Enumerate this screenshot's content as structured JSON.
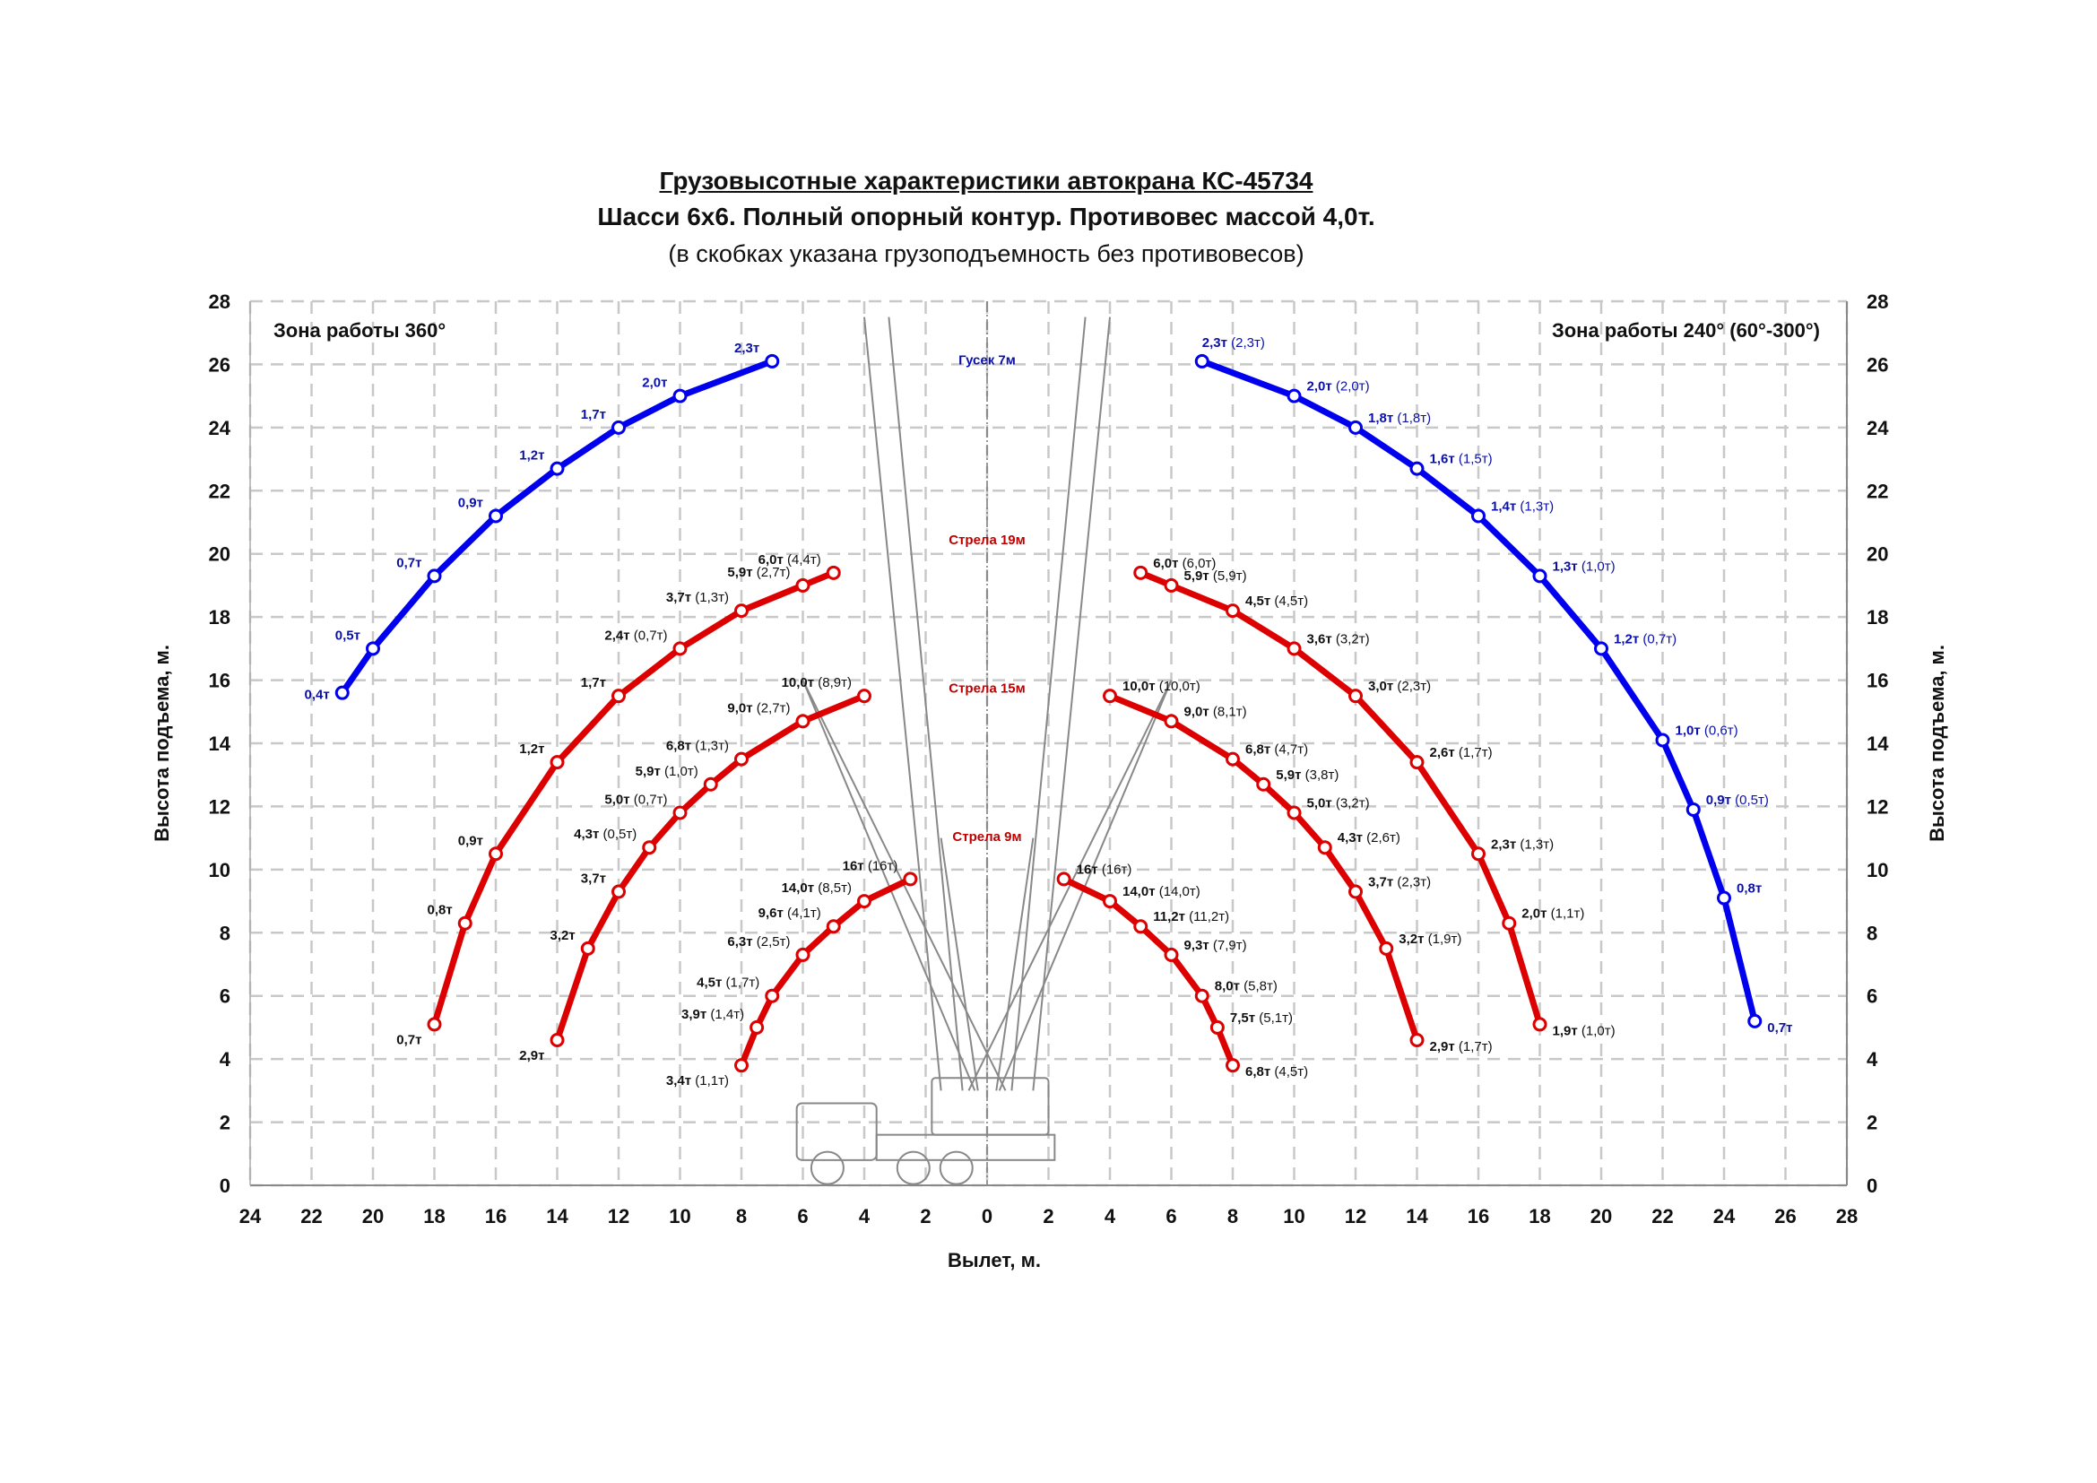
{
  "chart_data": {
    "type": "line",
    "title": "Грузовысотные характеристики автокрана КС-45734",
    "subtitle": "Шасси 6х6. Полный опорный контур. Противовес массой 4,0т.",
    "note": "(в скобках указана грузоподъемность без противовесов)",
    "xlabel": "Вылет, м.",
    "ylabel": "Высота подъема, м.",
    "xlim": [
      -24,
      28
    ],
    "ylim": [
      0,
      28
    ],
    "grid": true,
    "x_ticks": [
      {
        "value": -24,
        "label": "24"
      },
      {
        "value": -22,
        "label": "22"
      },
      {
        "value": -20,
        "label": "20"
      },
      {
        "value": -18,
        "label": "18"
      },
      {
        "value": -16,
        "label": "16"
      },
      {
        "value": -14,
        "label": "14"
      },
      {
        "value": -12,
        "label": "12"
      },
      {
        "value": -10,
        "label": "10"
      },
      {
        "value": -8,
        "label": "8"
      },
      {
        "value": -6,
        "label": "6"
      },
      {
        "value": -4,
        "label": "4"
      },
      {
        "value": -2,
        "label": "2"
      },
      {
        "value": 0,
        "label": "0"
      },
      {
        "value": 2,
        "label": "2"
      },
      {
        "value": 4,
        "label": "4"
      },
      {
        "value": 6,
        "label": "6"
      },
      {
        "value": 8,
        "label": "8"
      },
      {
        "value": 10,
        "label": "10"
      },
      {
        "value": 12,
        "label": "12"
      },
      {
        "value": 14,
        "label": "14"
      },
      {
        "value": 16,
        "label": "16"
      },
      {
        "value": 18,
        "label": "18"
      },
      {
        "value": 20,
        "label": "20"
      },
      {
        "value": 22,
        "label": "22"
      },
      {
        "value": 24,
        "label": "24"
      },
      {
        "value": 26,
        "label": "26"
      },
      {
        "value": 28,
        "label": "28"
      }
    ],
    "y_ticks": [
      "0",
      "2",
      "4",
      "6",
      "8",
      "10",
      "12",
      "14",
      "16",
      "18",
      "20",
      "22",
      "24",
      "26",
      "28"
    ],
    "zones": {
      "left": "Зона работы 360°",
      "right": "Зона работы 240° (60°-300°)"
    },
    "annotations": [
      {
        "text": "Гусек 7м",
        "x": 0,
        "y": 26,
        "color": "#0a10a8"
      },
      {
        "text": "Стрела 19м",
        "x": 0,
        "y": 20.3,
        "color": "#c00000"
      },
      {
        "text": "Стрела 15м",
        "x": 0,
        "y": 15.6,
        "color": "#c00000"
      },
      {
        "text": "Стрела 9м",
        "x": 0,
        "y": 10.9,
        "color": "#c00000"
      }
    ],
    "colors": {
      "jib": "#0000ee",
      "boom": "#dd0000",
      "jib_text": "#0a10a8",
      "grid": "#c8c8c8"
    },
    "series": [
      {
        "name": "Гусек 7м — 360°",
        "kind": "jib",
        "side": "left",
        "points": [
          {
            "x": -21,
            "y": 15.6,
            "main": "0,4т",
            "alt": ""
          },
          {
            "x": -20,
            "y": 17.0,
            "main": "0,5т",
            "alt": ""
          },
          {
            "x": -18,
            "y": 19.3,
            "main": "0,7т",
            "alt": ""
          },
          {
            "x": -16,
            "y": 21.2,
            "main": "0,9т",
            "alt": ""
          },
          {
            "x": -14,
            "y": 22.7,
            "main": "1,2т",
            "alt": ""
          },
          {
            "x": -12,
            "y": 24.0,
            "main": "1,7т",
            "alt": ""
          },
          {
            "x": -10,
            "y": 25.0,
            "main": "2,0т",
            "alt": ""
          },
          {
            "x": -7,
            "y": 26.1,
            "main": "2,3т",
            "alt": ""
          }
        ]
      },
      {
        "name": "Стрела 19м — 360°",
        "kind": "boom",
        "side": "left",
        "points": [
          {
            "x": -18,
            "y": 5.1,
            "main": "0,7т",
            "alt": ""
          },
          {
            "x": -17,
            "y": 8.3,
            "main": "0,8т",
            "alt": ""
          },
          {
            "x": -16,
            "y": 10.5,
            "main": "0,9т",
            "alt": ""
          },
          {
            "x": -14,
            "y": 13.4,
            "main": "1,2т",
            "alt": ""
          },
          {
            "x": -12,
            "y": 15.5,
            "main": "1,7т",
            "alt": ""
          },
          {
            "x": -10,
            "y": 17.0,
            "main": "2,4т",
            "alt": "(0,7т)"
          },
          {
            "x": -8,
            "y": 18.2,
            "main": "3,7т",
            "alt": "(1,3т)"
          },
          {
            "x": -6,
            "y": 19.0,
            "main": "5,9т",
            "alt": "(2,7т)"
          },
          {
            "x": -5,
            "y": 19.4,
            "main": "6,0т",
            "alt": "(4,4т)"
          }
        ]
      },
      {
        "name": "Стрела 15м — 360°",
        "kind": "boom",
        "side": "left",
        "points": [
          {
            "x": -14,
            "y": 4.6,
            "main": "2,9т",
            "alt": ""
          },
          {
            "x": -13,
            "y": 7.5,
            "main": "3,2т",
            "alt": ""
          },
          {
            "x": -12,
            "y": 9.3,
            "main": "3,7т",
            "alt": ""
          },
          {
            "x": -11,
            "y": 10.7,
            "main": "4,3т",
            "alt": "(0,5т)"
          },
          {
            "x": -10,
            "y": 11.8,
            "main": "5,0т",
            "alt": "(0,7т)"
          },
          {
            "x": -9,
            "y": 12.7,
            "main": "5,9т",
            "alt": "(1,0т)"
          },
          {
            "x": -8,
            "y": 13.5,
            "main": "6,8т",
            "alt": "(1,3т)"
          },
          {
            "x": -6,
            "y": 14.7,
            "main": "9,0т",
            "alt": "(2,7т)"
          },
          {
            "x": -4,
            "y": 15.5,
            "main": "10,0т",
            "alt": "(8,9т)"
          }
        ]
      },
      {
        "name": "Стрела 9м — 360°",
        "kind": "boom",
        "side": "left",
        "points": [
          {
            "x": -8,
            "y": 3.8,
            "main": "3,4т",
            "alt": "(1,1т)"
          },
          {
            "x": -7.5,
            "y": 5.0,
            "main": "3,9т",
            "alt": "(1,4т)"
          },
          {
            "x": -7,
            "y": 6.0,
            "main": "4,5т",
            "alt": "(1,7т)"
          },
          {
            "x": -6,
            "y": 7.3,
            "main": "6,3т",
            "alt": "(2,5т)"
          },
          {
            "x": -5,
            "y": 8.2,
            "main": "9,6т",
            "alt": "(4,1т)"
          },
          {
            "x": -4,
            "y": 9.0,
            "main": "14,0т",
            "alt": "(8,5т)"
          },
          {
            "x": -2.5,
            "y": 9.7,
            "main": "16т",
            "alt": "(16т)"
          }
        ]
      },
      {
        "name": "Гусек 7м — 240°",
        "kind": "jib",
        "side": "right",
        "points": [
          {
            "x": 7,
            "y": 26.1,
            "main": "2,3т",
            "alt": "(2,3т)"
          },
          {
            "x": 10,
            "y": 25.0,
            "main": "2,0т",
            "alt": "(2,0т)"
          },
          {
            "x": 12,
            "y": 24.0,
            "main": "1,8т",
            "alt": "(1,8т)"
          },
          {
            "x": 14,
            "y": 22.7,
            "main": "1,6т",
            "alt": "(1,5т)"
          },
          {
            "x": 16,
            "y": 21.2,
            "main": "1,4т",
            "alt": "(1,3т)"
          },
          {
            "x": 18,
            "y": 19.3,
            "main": "1,3т",
            "alt": "(1,0т)"
          },
          {
            "x": 20,
            "y": 17.0,
            "main": "1,2т",
            "alt": "(0,7т)"
          },
          {
            "x": 22,
            "y": 14.1,
            "main": "1,0т",
            "alt": "(0,6т)"
          },
          {
            "x": 23,
            "y": 11.9,
            "main": "0,9т",
            "alt": "(0,5т)"
          },
          {
            "x": 24,
            "y": 9.1,
            "main": "0,8т",
            "alt": ""
          },
          {
            "x": 25,
            "y": 5.2,
            "main": "0,7т",
            "alt": ""
          }
        ]
      },
      {
        "name": "Стрела 19м — 240°",
        "kind": "boom",
        "side": "right",
        "points": [
          {
            "x": 5,
            "y": 19.4,
            "main": "6,0т",
            "alt": "(6,0т)"
          },
          {
            "x": 6,
            "y": 19.0,
            "main": "5,9т",
            "alt": "(5,9т)"
          },
          {
            "x": 8,
            "y": 18.2,
            "main": "4,5т",
            "alt": "(4,5т)"
          },
          {
            "x": 10,
            "y": 17.0,
            "main": "3,6т",
            "alt": "(3,2т)"
          },
          {
            "x": 12,
            "y": 15.5,
            "main": "3,0т",
            "alt": "(2,3т)"
          },
          {
            "x": 14,
            "y": 13.4,
            "main": "2,6т",
            "alt": "(1,7т)"
          },
          {
            "x": 16,
            "y": 10.5,
            "main": "2,3т",
            "alt": "(1,3т)"
          },
          {
            "x": 17,
            "y": 8.3,
            "main": "2,0т",
            "alt": "(1,1т)"
          },
          {
            "x": 18,
            "y": 5.1,
            "main": "1,9т",
            "alt": "(1,0т)"
          }
        ]
      },
      {
        "name": "Стрела 15м — 240°",
        "kind": "boom",
        "side": "right",
        "points": [
          {
            "x": 4,
            "y": 15.5,
            "main": "10,0т",
            "alt": "(10,0т)"
          },
          {
            "x": 6,
            "y": 14.7,
            "main": "9,0т",
            "alt": "(8,1т)"
          },
          {
            "x": 8,
            "y": 13.5,
            "main": "6,8т",
            "alt": "(4,7т)"
          },
          {
            "x": 9,
            "y": 12.7,
            "main": "5,9т",
            "alt": "(3,8т)"
          },
          {
            "x": 10,
            "y": 11.8,
            "main": "5,0т",
            "alt": "(3,2т)"
          },
          {
            "x": 11,
            "y": 10.7,
            "main": "4,3т",
            "alt": "(2,6т)"
          },
          {
            "x": 12,
            "y": 9.3,
            "main": "3,7т",
            "alt": "(2,3т)"
          },
          {
            "x": 13,
            "y": 7.5,
            "main": "3,2т",
            "alt": "(1,9т)"
          },
          {
            "x": 14,
            "y": 4.6,
            "main": "2,9т",
            "alt": "(1,7т)"
          }
        ]
      },
      {
        "name": "Стрела 9м — 240°",
        "kind": "boom",
        "side": "right",
        "points": [
          {
            "x": 2.5,
            "y": 9.7,
            "main": "16т",
            "alt": "(16т)"
          },
          {
            "x": 4,
            "y": 9.0,
            "main": "14,0т",
            "alt": "(14,0т)"
          },
          {
            "x": 5,
            "y": 8.2,
            "main": "11,2т",
            "alt": "(11,2т)"
          },
          {
            "x": 6,
            "y": 7.3,
            "main": "9,3т",
            "alt": "(7,9т)"
          },
          {
            "x": 7,
            "y": 6.0,
            "main": "8,0т",
            "alt": "(5,8т)"
          },
          {
            "x": 7.5,
            "y": 5.0,
            "main": "7,5т",
            "alt": "(5,1т)"
          },
          {
            "x": 8,
            "y": 3.8,
            "main": "6,8т",
            "alt": "(4,5т)"
          }
        ]
      }
    ]
  }
}
